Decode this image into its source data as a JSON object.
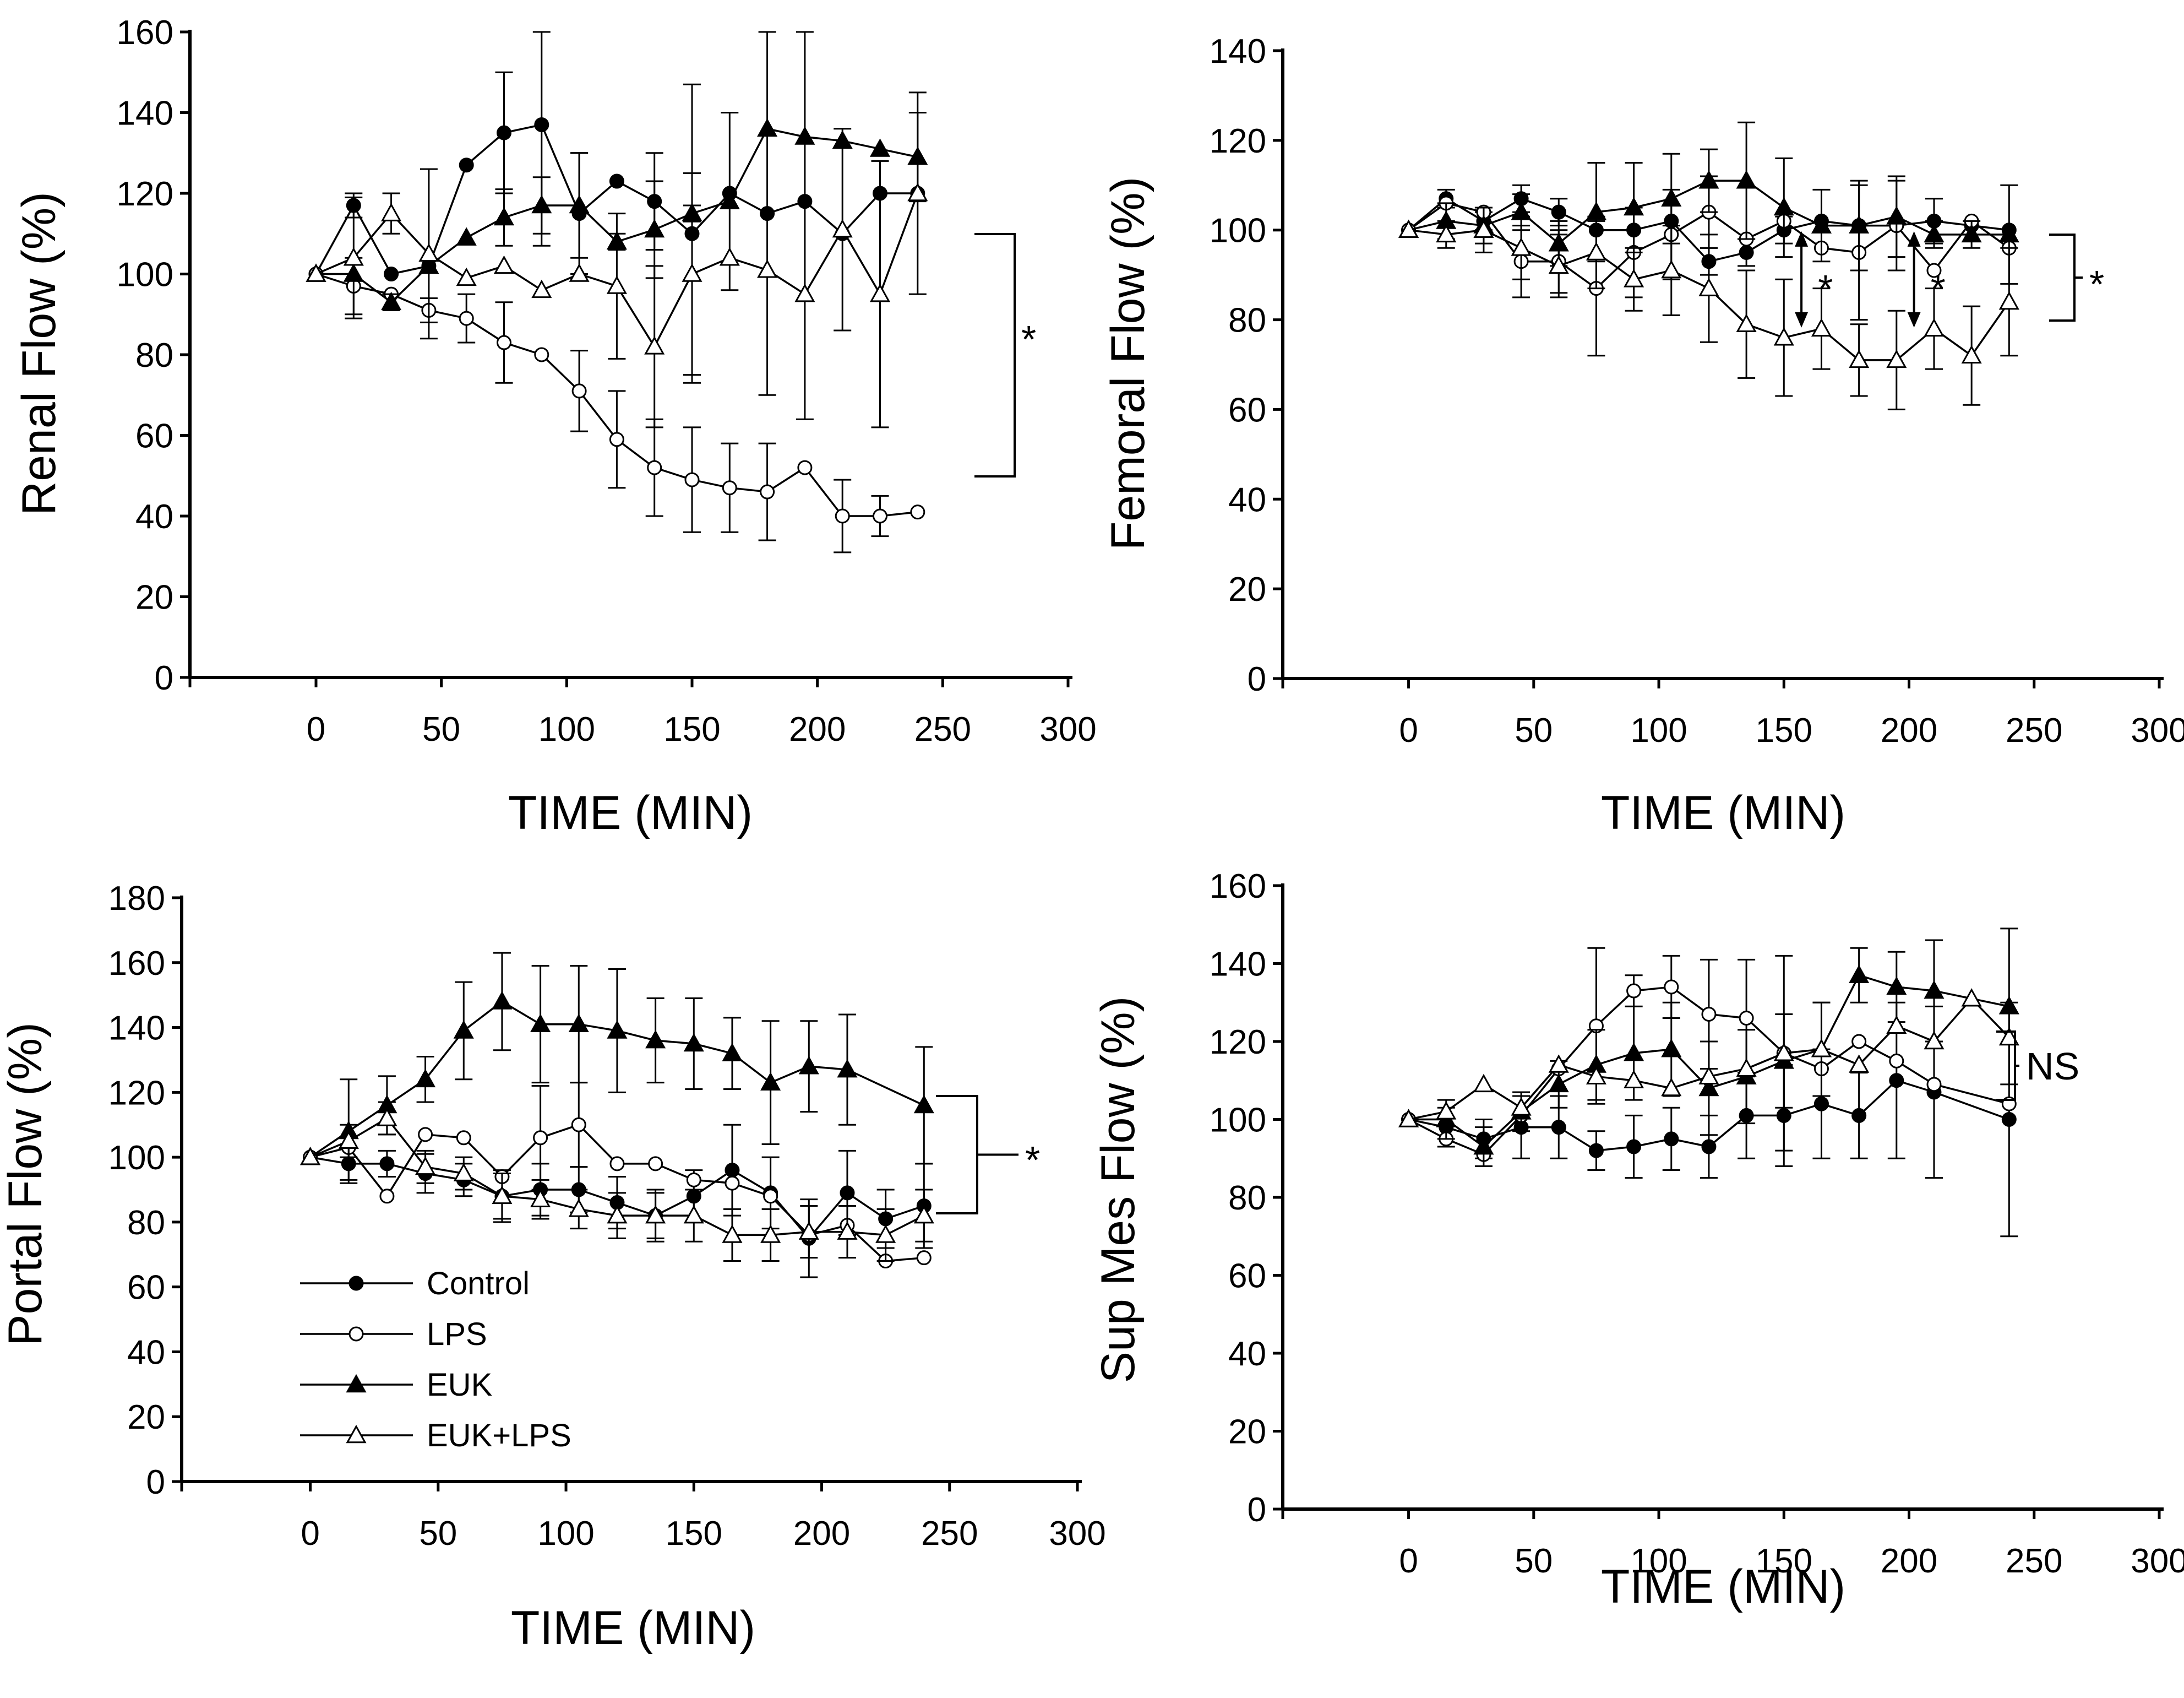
{
  "chart_data": [
    {
      "type": "line",
      "panel": "top-left",
      "ylabel": "Renal Flow (%)",
      "xlabel": "TIME (MIN)",
      "xlim": [
        -50,
        300
      ],
      "ylim": [
        0,
        160
      ],
      "xticks": [
        0,
        50,
        100,
        150,
        200,
        250,
        300
      ],
      "yticks": [
        0,
        20,
        40,
        60,
        80,
        100,
        120,
        140,
        160
      ],
      "series": [
        {
          "name": "Control",
          "marker": "circle-filled",
          "x": [
            0,
            15,
            30,
            45,
            60,
            75,
            90,
            105,
            120,
            135,
            150,
            165,
            180,
            195,
            210,
            225,
            240
          ],
          "y": [
            100,
            117,
            100,
            102,
            127,
            135,
            137,
            115,
            123,
            118,
            110,
            120,
            115,
            118,
            110,
            120,
            120
          ],
          "err": [
            0,
            3,
            0,
            0,
            0,
            15,
            30,
            15,
            0,
            12,
            37,
            0,
            45,
            54,
            0,
            0,
            0
          ]
        },
        {
          "name": "LPS",
          "marker": "circle-open",
          "x": [
            0,
            15,
            30,
            45,
            60,
            75,
            90,
            105,
            120,
            135,
            150,
            165,
            180,
            195,
            210,
            225,
            240
          ],
          "y": [
            100,
            97,
            95,
            91,
            89,
            83,
            80,
            71,
            59,
            52,
            49,
            47,
            46,
            52,
            40,
            40,
            41
          ],
          "err": [
            0,
            7,
            0,
            3,
            6,
            10,
            0,
            10,
            12,
            12,
            13,
            11,
            12,
            0,
            9,
            5,
            0
          ]
        },
        {
          "name": "EUK",
          "marker": "triangle-filled",
          "x": [
            0,
            15,
            30,
            45,
            60,
            75,
            90,
            105,
            120,
            135,
            150,
            165,
            180,
            195,
            210,
            225,
            240
          ],
          "y": [
            100,
            100,
            93,
            102,
            109,
            114,
            117,
            117,
            108,
            111,
            115,
            118,
            136,
            134,
            133,
            131,
            129
          ],
          "err": [
            0,
            0,
            2,
            0,
            0,
            7,
            7,
            13,
            2,
            12,
            2,
            22,
            0,
            0,
            0,
            0,
            11
          ]
        },
        {
          "name": "EUK+LPS",
          "marker": "triangle-open",
          "x": [
            0,
            15,
            30,
            45,
            60,
            75,
            90,
            105,
            120,
            135,
            150,
            165,
            180,
            195,
            210,
            225,
            240
          ],
          "y": [
            100,
            104,
            115,
            105,
            99,
            102,
            96,
            100,
            97,
            82,
            100,
            104,
            101,
            95,
            111,
            95,
            120
          ],
          "err": [
            0,
            15,
            5,
            21,
            0,
            0,
            0,
            0,
            18,
            20,
            25,
            0,
            0,
            0,
            25,
            33,
            25
          ]
        }
      ],
      "significance": "*"
    },
    {
      "type": "line",
      "panel": "top-right",
      "ylabel": "Femoral Flow (%)",
      "xlabel": "TIME (MIN)",
      "xlim": [
        -50,
        300
      ],
      "ylim": [
        0,
        140
      ],
      "xticks": [
        0,
        50,
        100,
        150,
        200,
        250,
        300
      ],
      "yticks": [
        0,
        20,
        40,
        60,
        80,
        100,
        120,
        140
      ],
      "series": [
        {
          "name": "Control",
          "marker": "circle-filled",
          "x": [
            0,
            15,
            30,
            45,
            60,
            75,
            90,
            105,
            120,
            135,
            150,
            165,
            180,
            195,
            210,
            225,
            240
          ],
          "y": [
            100,
            107,
            102,
            107,
            104,
            100,
            100,
            102,
            93,
            95,
            100,
            102,
            101,
            101,
            102,
            101,
            100
          ],
          "err": [
            0,
            2,
            2,
            3,
            3,
            0,
            0,
            0,
            3,
            3,
            3,
            0,
            0,
            0,
            5,
            0,
            0
          ]
        },
        {
          "name": "LPS",
          "marker": "circle-open",
          "x": [
            0,
            15,
            30,
            45,
            60,
            75,
            90,
            105,
            120,
            135,
            150,
            165,
            180,
            195,
            210,
            225,
            240
          ],
          "y": [
            100,
            106,
            104,
            93,
            93,
            87,
            95,
            99,
            104,
            98,
            102,
            96,
            95,
            101,
            91,
            102,
            96
          ],
          "err": [
            0,
            0,
            0,
            8,
            7,
            15,
            10,
            10,
            8,
            0,
            0,
            0,
            15,
            10,
            0,
            0,
            0
          ]
        },
        {
          "name": "EUK",
          "marker": "triangle-filled",
          "x": [
            0,
            15,
            30,
            45,
            60,
            75,
            90,
            105,
            120,
            135,
            150,
            165,
            180,
            195,
            210,
            225,
            240
          ],
          "y": [
            100,
            102,
            101,
            104,
            97,
            104,
            105,
            107,
            111,
            111,
            105,
            101,
            101,
            103,
            99,
            99,
            99
          ],
          "err": [
            0,
            4,
            4,
            4,
            5,
            11,
            10,
            10,
            7,
            13,
            11,
            8,
            10,
            9,
            3,
            3,
            11
          ]
        },
        {
          "name": "EUK+LPS",
          "marker": "triangle-open",
          "x": [
            0,
            15,
            30,
            45,
            60,
            75,
            90,
            105,
            120,
            135,
            150,
            165,
            180,
            195,
            210,
            225,
            240
          ],
          "y": [
            100,
            99,
            100,
            96,
            92,
            95,
            89,
            91,
            87,
            79,
            76,
            78,
            71,
            71,
            78,
            72,
            84
          ],
          "err": [
            0,
            3,
            5,
            7,
            7,
            8,
            7,
            10,
            12,
            12,
            13,
            9,
            8,
            11,
            9,
            11,
            12
          ]
        }
      ],
      "annotations": [
        {
          "text": "*",
          "x": 165
        },
        {
          "text": "*",
          "x": 210
        }
      ],
      "significance": "*"
    },
    {
      "type": "line",
      "panel": "bottom-left",
      "ylabel": "Portal Flow (%)",
      "xlabel": "TIME (MIN)",
      "xlim": [
        -50,
        300
      ],
      "ylim": [
        0,
        180
      ],
      "xticks": [
        0,
        50,
        100,
        150,
        200,
        250,
        300
      ],
      "yticks": [
        0,
        20,
        40,
        60,
        80,
        100,
        120,
        140,
        160,
        180
      ],
      "series": [
        {
          "name": "Control",
          "marker": "circle-filled",
          "x": [
            0,
            15,
            30,
            45,
            60,
            75,
            90,
            105,
            120,
            135,
            150,
            165,
            180,
            195,
            210,
            225,
            240
          ],
          "y": [
            100,
            98,
            98,
            95,
            93,
            88,
            90,
            90,
            86,
            82,
            88,
            96,
            89,
            75,
            89,
            81,
            85
          ],
          "err": [
            0,
            5,
            4,
            6,
            5,
            8,
            8,
            7,
            8,
            8,
            8,
            14,
            11,
            12,
            13,
            9,
            13
          ]
        },
        {
          "name": "LPS",
          "marker": "circle-open",
          "x": [
            0,
            15,
            30,
            45,
            60,
            75,
            90,
            105,
            120,
            135,
            150,
            165,
            180,
            195,
            210,
            225,
            240
          ],
          "y": [
            100,
            103,
            88,
            107,
            106,
            94,
            106,
            110,
            98,
            98,
            93,
            92,
            88,
            76,
            79,
            68,
            69
          ],
          "err": [
            0,
            0,
            0,
            0,
            0,
            0,
            16,
            13,
            0,
            0,
            0,
            0,
            0,
            0,
            0,
            0,
            0
          ]
        },
        {
          "name": "EUK",
          "marker": "triangle-filled",
          "x": [
            0,
            15,
            30,
            45,
            60,
            75,
            90,
            105,
            120,
            135,
            150,
            165,
            180,
            195,
            210,
            225,
            240
          ],
          "y": [
            100,
            108,
            116,
            124,
            139,
            148,
            141,
            141,
            139,
            136,
            135,
            132,
            123,
            128,
            127,
            null,
            116
          ],
          "err": [
            0,
            16,
            9,
            7,
            15,
            15,
            18,
            18,
            19,
            13,
            14,
            11,
            19,
            14,
            17,
            null,
            18
          ]
        },
        {
          "name": "EUK+LPS",
          "marker": "triangle-open",
          "x": [
            0,
            15,
            30,
            45,
            60,
            75,
            90,
            105,
            120,
            135,
            150,
            165,
            180,
            195,
            210,
            225,
            240
          ],
          "y": [
            100,
            105,
            112,
            97,
            95,
            88,
            87,
            84,
            82,
            82,
            82,
            76,
            76,
            77,
            77,
            76,
            82
          ],
          "err": [
            0,
            5,
            5,
            5,
            5,
            7,
            6,
            6,
            7,
            7,
            8,
            8,
            8,
            8,
            8,
            8,
            8
          ]
        }
      ],
      "legend": {
        "entries": [
          "Control",
          "LPS",
          "EUK",
          "EUK+LPS"
        ],
        "location": "lower-left"
      },
      "significance": "*"
    },
    {
      "type": "line",
      "panel": "bottom-right",
      "ylabel": "Sup Mes Flow (%)",
      "xlabel": "TIME (MIN)",
      "xlim": [
        -50,
        300
      ],
      "ylim": [
        0,
        160
      ],
      "xticks": [
        0,
        50,
        100,
        150,
        200,
        250,
        300
      ],
      "yticks": [
        0,
        20,
        40,
        60,
        80,
        100,
        120,
        140,
        160
      ],
      "series": [
        {
          "name": "Control",
          "marker": "circle-filled",
          "x": [
            0,
            15,
            30,
            45,
            60,
            75,
            90,
            105,
            120,
            135,
            150,
            165,
            180,
            195,
            210,
            240
          ],
          "y": [
            100,
            98,
            95,
            98,
            98,
            92,
            93,
            95,
            93,
            101,
            101,
            104,
            101,
            110,
            107,
            100
          ],
          "err": [
            0,
            5,
            5,
            8,
            8,
            5,
            8,
            8,
            8,
            11,
            13,
            14,
            11,
            20,
            22,
            30
          ]
        },
        {
          "name": "LPS",
          "marker": "circle-open",
          "x": [
            0,
            15,
            30,
            45,
            60,
            75,
            90,
            105,
            120,
            135,
            150,
            165,
            180,
            195,
            210,
            240
          ],
          "y": [
            100,
            95,
            91,
            101,
            113,
            124,
            133,
            134,
            127,
            126,
            117,
            113,
            120,
            115,
            109,
            104
          ],
          "err": [
            0,
            0,
            0,
            0,
            0,
            20,
            4,
            8,
            14,
            15,
            25,
            0,
            0,
            0,
            0,
            0
          ]
        },
        {
          "name": "EUK",
          "marker": "triangle-filled",
          "x": [
            0,
            15,
            30,
            45,
            60,
            75,
            90,
            105,
            120,
            135,
            150,
            165,
            180,
            195,
            210,
            240
          ],
          "y": [
            100,
            100,
            93,
            102,
            109,
            114,
            117,
            118,
            108,
            111,
            115,
            118,
            137,
            134,
            133,
            129
          ],
          "err": [
            0,
            5,
            5,
            5,
            6,
            9,
            12,
            12,
            12,
            12,
            12,
            12,
            7,
            9,
            13,
            20
          ]
        },
        {
          "name": "EUK+LPS",
          "marker": "triangle-open",
          "x": [
            0,
            15,
            30,
            45,
            60,
            75,
            90,
            105,
            120,
            135,
            150,
            165,
            180,
            195,
            210,
            225,
            240
          ],
          "y": [
            100,
            102,
            109,
            103,
            114,
            111,
            110,
            108,
            111,
            113,
            117,
            118,
            114,
            124,
            120,
            131,
            121
          ],
          "err": [
            0,
            0,
            0,
            0,
            0,
            0,
            0,
            0,
            0,
            0,
            0,
            12,
            0,
            0,
            0,
            0,
            0
          ]
        }
      ],
      "significance": "NS"
    }
  ]
}
